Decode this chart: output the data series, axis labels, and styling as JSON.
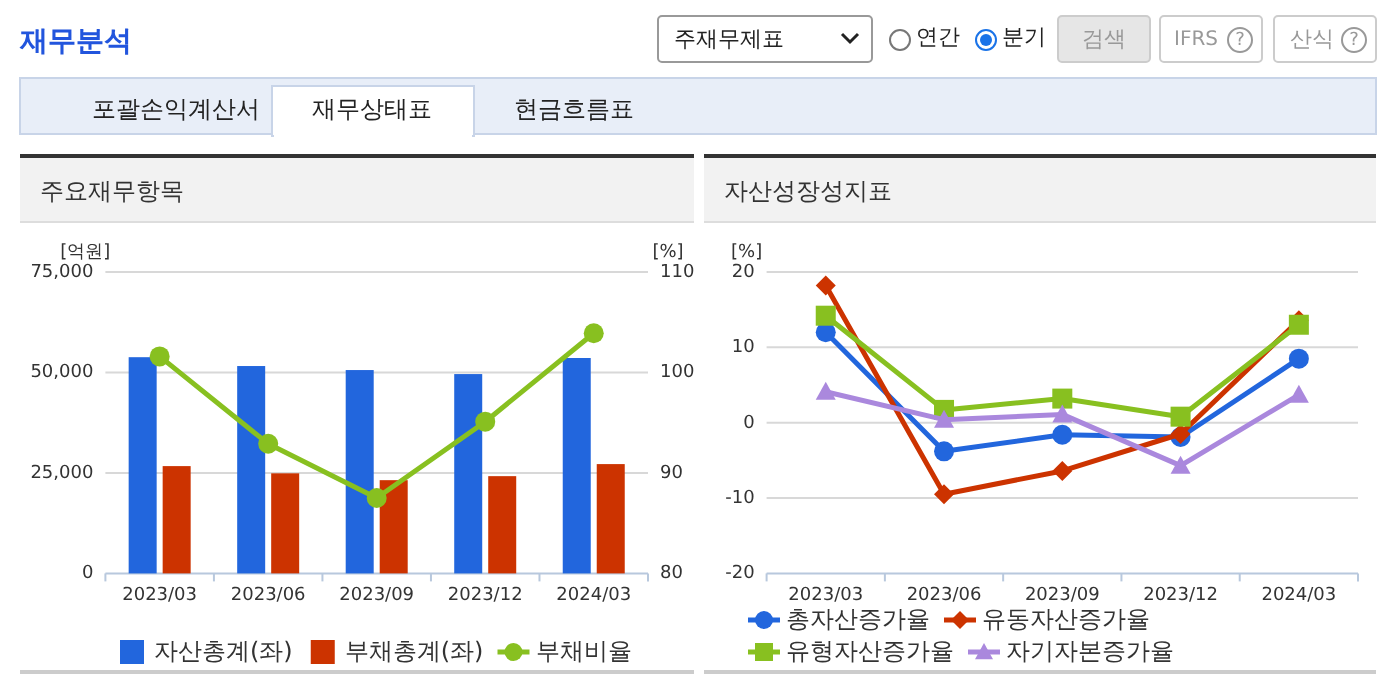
{
  "chart_data": [
    {
      "type": "other",
      "title": "재무분석",
      "annotations": [
        "주재무제표",
        "연간",
        "분기",
        "검색",
        "IFRS",
        "산식",
        "포괄손익계산서",
        "재무상태표",
        "현금흐름표",
        "?",
        "?"
      ]
    },
    {
      "type": "bar",
      "title": "주요재무항목",
      "ylabel": "[억원]",
      "y2label": "[%]",
      "categories": [
        "2023/03",
        "2023/06",
        "2023/09",
        "2023/12",
        "2024/03"
      ],
      "series": [
        {
          "name": "자산총계(좌)",
          "color": "#2266dd",
          "values": [
            53800,
            51600,
            50600,
            49600,
            53600
          ]
        },
        {
          "name": "부채총계(좌)",
          "color": "#cc3300",
          "values": [
            26700,
            24900,
            23200,
            24200,
            27200
          ]
        },
        {
          "name": "부채비율",
          "type": "line",
          "axis": "y2",
          "marker": "circle",
          "color": "#88c020",
          "values": [
            101.6,
            92.9,
            87.5,
            95.1,
            103.9
          ]
        }
      ],
      "ylim": [
        0,
        75000
      ],
      "yticks": [
        0,
        {
          "value": 25000,
          "label": "25,000"
        },
        {
          "value": 50000,
          "label": "50,000"
        },
        {
          "value": 75000,
          "label": "75,000"
        }
      ],
      "y2lim": [
        80,
        110
      ],
      "y2ticks": [
        80,
        90,
        100,
        110
      ],
      "grid": "y",
      "legend": "bottom"
    },
    {
      "type": "line",
      "title": "자산성장성지표",
      "ylabel": "[%]",
      "categories": [
        "2023/03",
        "2023/06",
        "2023/09",
        "2023/12",
        "2024/03"
      ],
      "series": [
        {
          "name": "총자산증가율",
          "marker": "circle",
          "color": "#2266dd",
          "values": [
            12.0,
            -3.8,
            -1.6,
            -1.9,
            8.5
          ]
        },
        {
          "name": "유동자산증가율",
          "marker": "diamond",
          "color": "#cc3300",
          "values": [
            18.2,
            -9.5,
            -6.4,
            -1.5,
            13.6
          ]
        },
        {
          "name": "유형자산증가율",
          "marker": "square",
          "color": "#88c020",
          "values": [
            14.2,
            1.7,
            3.2,
            0.8,
            13.0
          ]
        },
        {
          "name": "자기자본증가율",
          "marker": "triangle",
          "color": "#aa88dd",
          "values": [
            4.1,
            0.4,
            1.1,
            -5.7,
            3.7
          ]
        }
      ],
      "ylim": [
        -20,
        20
      ],
      "yticks": [
        -20,
        -10,
        0,
        10,
        20
      ],
      "grid": "y",
      "legend": "bottom"
    }
  ]
}
